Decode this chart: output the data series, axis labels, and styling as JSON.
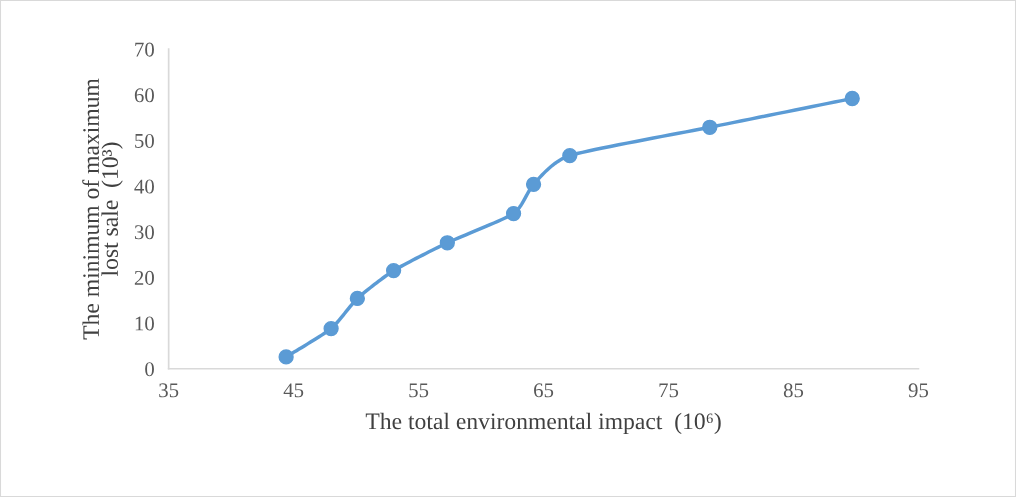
{
  "chart_data": {
    "type": "line",
    "xlabel": "The total environmental impact  (10⁶)",
    "ylabel": "The minimum of maximum\nlost sale  (10³)",
    "series": [
      {
        "color": "#5b9bd5",
        "x": [
          44.4,
          48.0,
          50.1,
          53.0,
          57.3,
          62.6,
          64.2,
          67.1,
          78.3,
          89.7
        ],
        "values": [
          2.6,
          8.8,
          15.4,
          21.5,
          27.6,
          34.0,
          40.4,
          46.7,
          52.9,
          59.2
        ]
      }
    ],
    "xlim": [
      35,
      95
    ],
    "xticks": [
      35,
      45,
      55,
      65,
      75,
      85,
      95
    ],
    "ylim": [
      0,
      70
    ],
    "yticks": [
      0,
      10,
      20,
      30,
      40,
      50,
      60,
      70
    ],
    "marker": "circle",
    "line_style": "solid",
    "grid": false,
    "legend": false
  }
}
